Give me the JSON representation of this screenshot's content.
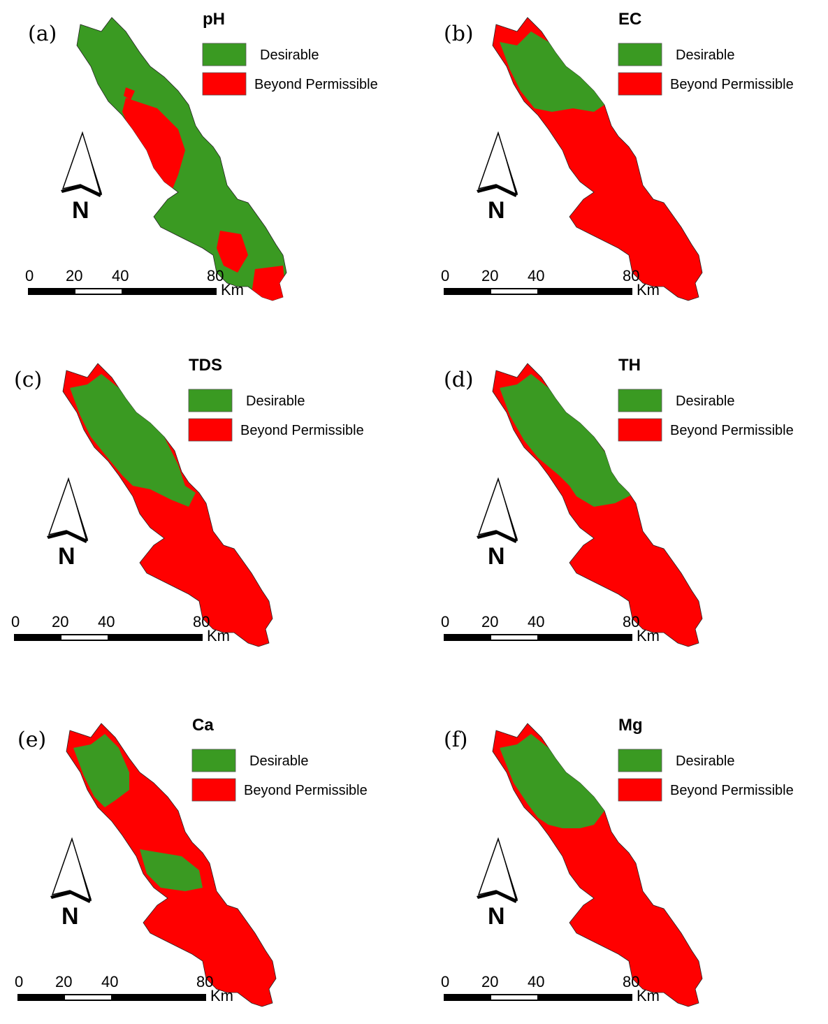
{
  "colors": {
    "desirable": "#3a9a22",
    "beyond": "#ff0000"
  },
  "legend": {
    "desirable": "Desirable",
    "beyond": "Beyond Permissible"
  },
  "north_label": "N",
  "scale": {
    "ticks": [
      "0",
      "20",
      "40",
      "80"
    ],
    "unit": "Km"
  },
  "panels": [
    {
      "label": "(a)",
      "title": "pH"
    },
    {
      "label": "(b)",
      "title": "EC"
    },
    {
      "label": "(c)",
      "title": "TDS"
    },
    {
      "label": "(d)",
      "title": "TH"
    },
    {
      "label": "(e)",
      "title": "Ca"
    },
    {
      "label": "(f)",
      "title": "Mg"
    }
  ]
}
